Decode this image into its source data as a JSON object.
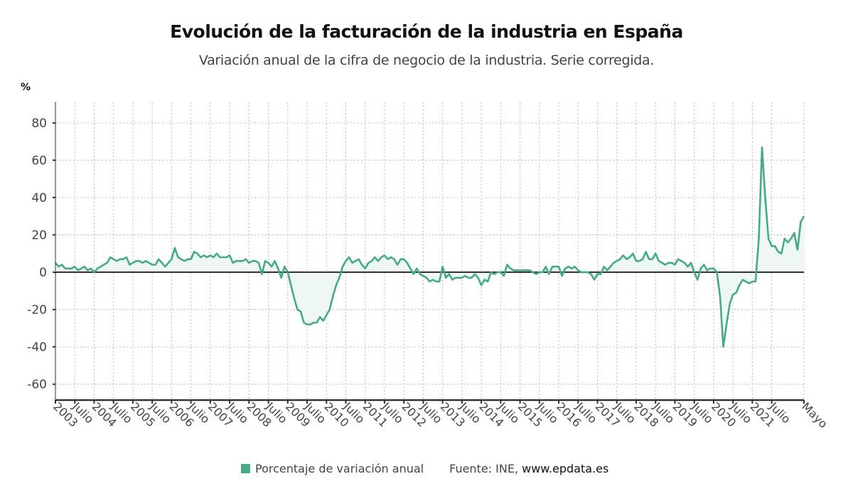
{
  "header": {
    "title": "Evolución de la facturación de la industria en España",
    "subtitle": "Variación anual de la cifra de negocio de la industria. Serie corregida."
  },
  "legend": {
    "series_label": "Porcentaje de variación anual",
    "source_prefix": "Fuente: INE, ",
    "source_site": "www.epdata.es"
  },
  "colors": {
    "line": "#44aa88",
    "fill": "#eef7f4",
    "zero_line": "#333333",
    "grid": "#bbbbbb"
  },
  "chart_data": {
    "type": "area",
    "title": "Evolución de la facturación de la industria en España",
    "subtitle": "Variación anual de la cifra de negocio de la industria. Serie corregida.",
    "ylabel": "%",
    "xlabel": "",
    "ylim": [
      -68.5,
      91
    ],
    "yticks": [
      80,
      60,
      40,
      20,
      0,
      -20,
      -40,
      -60
    ],
    "x_start": "2003-01",
    "x_end": "2022-05",
    "frequency": "monthly",
    "grid": true,
    "legend_position": "bottom",
    "xtick_labels": [
      "2003",
      "Julio",
      "2004",
      "Julio",
      "2005",
      "Julio",
      "2006",
      "Julio",
      "2007",
      "Julio",
      "2008",
      "Julio",
      "2009",
      "Julio",
      "2010",
      "Julio",
      "2011",
      "Julio",
      "2012",
      "Julio",
      "2013",
      "Julio",
      "2014",
      "Julio",
      "2015",
      "Julio",
      "2016",
      "Julio",
      "2017",
      "Julio",
      "2018",
      "Julio",
      "2019",
      "Julio",
      "2020",
      "Julio",
      "2021",
      "Julio",
      "Mayo"
    ],
    "series": [
      {
        "name": "Porcentaje de variación anual",
        "values": [
          5,
          3,
          4,
          2,
          2,
          2,
          3,
          1,
          2,
          3,
          1,
          2,
          0,
          2,
          3,
          4,
          5,
          8,
          7,
          6,
          7,
          7,
          8,
          4,
          5,
          6,
          6,
          5,
          6,
          5,
          4,
          4,
          7,
          5,
          3,
          5,
          7,
          13,
          8,
          7,
          6,
          7,
          7,
          11,
          10,
          8,
          9,
          8,
          9,
          8,
          10,
          8,
          8,
          8,
          9,
          5,
          6,
          6,
          6,
          7,
          5,
          6,
          6,
          5,
          -1,
          6,
          5,
          3,
          6,
          2,
          -3,
          3,
          0,
          -7,
          -14,
          -20,
          -21,
          -27,
          -28,
          -28,
          -27,
          -27,
          -24,
          -26,
          -23,
          -20,
          -13,
          -7,
          -3,
          3,
          6,
          8,
          5,
          6,
          7,
          4,
          2,
          5,
          6,
          8,
          6,
          8,
          9,
          7,
          8,
          7,
          4,
          7,
          7,
          5,
          2,
          -1,
          2,
          -1,
          -2,
          -3,
          -5,
          -4,
          -5,
          -5,
          3,
          -3,
          -1,
          -4,
          -3,
          -3,
          -3,
          -2,
          -3,
          -3,
          -1,
          -3,
          -7,
          -4,
          -5,
          0,
          -1,
          0,
          0,
          -2,
          4,
          2,
          1,
          1,
          1,
          1,
          1,
          1,
          0,
          -1,
          0,
          0,
          3,
          -1,
          3,
          3,
          3,
          -2,
          2,
          3,
          2,
          3,
          1,
          0,
          0,
          0,
          -1,
          -4,
          -1,
          -1,
          3,
          1,
          3,
          5,
          6,
          7,
          9,
          7,
          8,
          10,
          6,
          6,
          7,
          11,
          7,
          7,
          10,
          6,
          5,
          4,
          5,
          5,
          4,
          7,
          6,
          5,
          3,
          5,
          0,
          -4,
          2,
          4,
          1,
          2,
          2,
          0,
          -13,
          -40,
          -28,
          -17,
          -12,
          -11,
          -7,
          -4,
          -5,
          -6,
          -5,
          -5,
          18,
          67,
          40,
          18,
          14,
          14,
          11,
          10,
          18,
          16,
          18,
          21,
          12,
          27,
          30
        ]
      }
    ]
  }
}
